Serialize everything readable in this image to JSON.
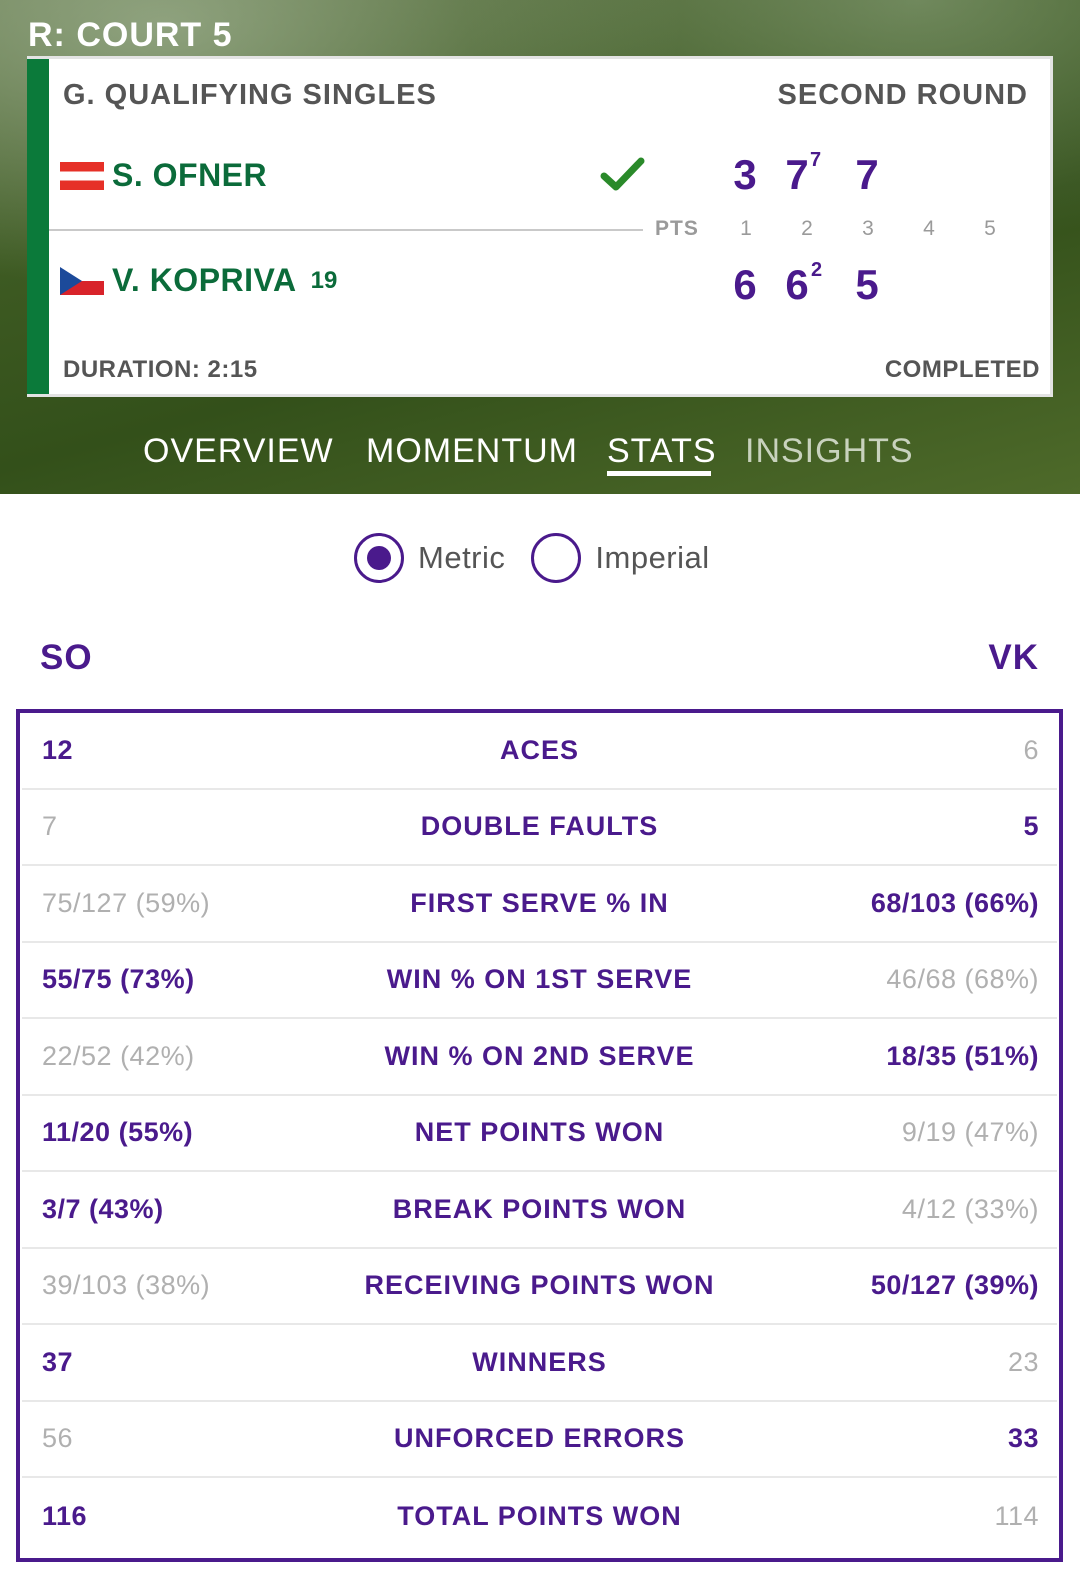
{
  "court": "R: COURT 5",
  "match": {
    "event": "G. QUALIFYING SINGLES",
    "round": "SECOND ROUND",
    "duration": "DURATION: 2:15",
    "status": "COMPLETED",
    "pts_label": "PTS",
    "set_numbers": [
      "1",
      "2",
      "3",
      "4",
      "5"
    ],
    "player1": {
      "name": "S. OFNER",
      "seed": "",
      "flag": "austria",
      "winner": true,
      "sets": [
        "3",
        "7",
        "7"
      ],
      "tiebreaks": [
        "",
        "7",
        ""
      ]
    },
    "player2": {
      "name": "V. KOPRIVA",
      "seed": "19",
      "flag": "czech-republic",
      "winner": false,
      "sets": [
        "6",
        "6",
        "5"
      ],
      "tiebreaks": [
        "",
        "2",
        ""
      ]
    }
  },
  "tabs": [
    {
      "label": "OVERVIEW",
      "active": false
    },
    {
      "label": "MOMENTUM",
      "active": false
    },
    {
      "label": "STATS",
      "active": true
    },
    {
      "label": "INSIGHTS",
      "active": false
    }
  ],
  "units": {
    "metric": {
      "label": "Metric",
      "selected": true
    },
    "imperial": {
      "label": "Imperial",
      "selected": false
    }
  },
  "stats": {
    "left_abbr": "SO",
    "right_abbr": "VK",
    "rows": [
      {
        "label": "ACES",
        "left": "12",
        "right": "6",
        "leader": "left"
      },
      {
        "label": "DOUBLE FAULTS",
        "left": "7",
        "right": "5",
        "leader": "right"
      },
      {
        "label": "FIRST SERVE % IN",
        "left": "75/127 (59%)",
        "right": "68/103 (66%)",
        "leader": "right"
      },
      {
        "label": "WIN % ON 1ST SERVE",
        "left": "55/75 (73%)",
        "right": "46/68 (68%)",
        "leader": "left"
      },
      {
        "label": "WIN % ON 2ND SERVE",
        "left": "22/52 (42%)",
        "right": "18/35 (51%)",
        "leader": "right"
      },
      {
        "label": "NET POINTS WON",
        "left": "11/20 (55%)",
        "right": "9/19 (47%)",
        "leader": "left"
      },
      {
        "label": "BREAK POINTS WON",
        "left": "3/7 (43%)",
        "right": "4/12 (33%)",
        "leader": "left"
      },
      {
        "label": "RECEIVING POINTS WON",
        "left": "39/103 (38%)",
        "right": "50/127 (39%)",
        "leader": "right"
      },
      {
        "label": "WINNERS",
        "left": "37",
        "right": "23",
        "leader": "left"
      },
      {
        "label": "UNFORCED ERRORS",
        "left": "56",
        "right": "33",
        "leader": "right"
      },
      {
        "label": "TOTAL POINTS WON",
        "left": "116",
        "right": "114",
        "leader": "left"
      }
    ]
  },
  "colors": {
    "accent": "#4a1a8c",
    "green": "#0b6b3a",
    "stripe": "#0b7a3a",
    "muted": "#b0b0b0"
  }
}
